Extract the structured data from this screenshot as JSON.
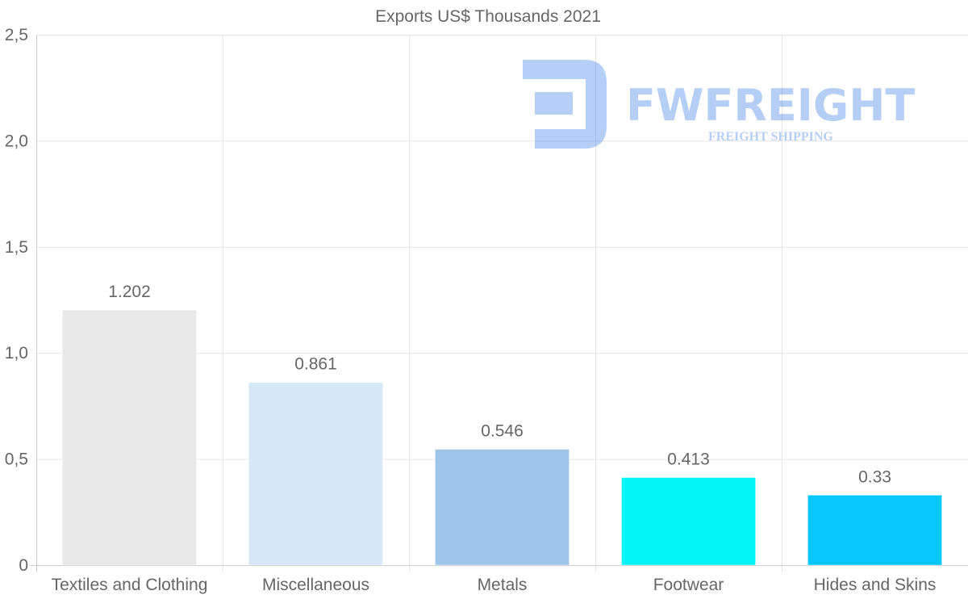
{
  "chart_data": {
    "type": "bar",
    "title": "Exports US$ Thousands 2021",
    "categories": [
      "Textiles and Clothing",
      "Miscellaneous",
      "Metals",
      "Footwear",
      "Hides and Skins"
    ],
    "values": [
      1.202,
      0.861,
      0.546,
      0.413,
      0.33
    ],
    "value_labels": [
      "1.202",
      "0.861",
      "0.546",
      "0.413",
      "0.33"
    ],
    "colors": [
      "#e8e8e8",
      "#d6e8f8",
      "#9ec5e8",
      "#05f5f8",
      "#05c8fa"
    ],
    "ylim": [
      0,
      2.5
    ],
    "yticks": [
      0,
      0.5,
      1.0,
      1.5,
      2.0,
      2.5
    ],
    "ytick_labels": [
      "0",
      "0,5",
      "1,0",
      "1,5",
      "2,0",
      "2,5"
    ],
    "xlabel": "",
    "ylabel": "",
    "grid": true,
    "legend": "none"
  },
  "watermark": {
    "brand": "FWFREIGHT",
    "tagline": "FREIGHT SHIPPING",
    "color": "#1a6ae6"
  }
}
